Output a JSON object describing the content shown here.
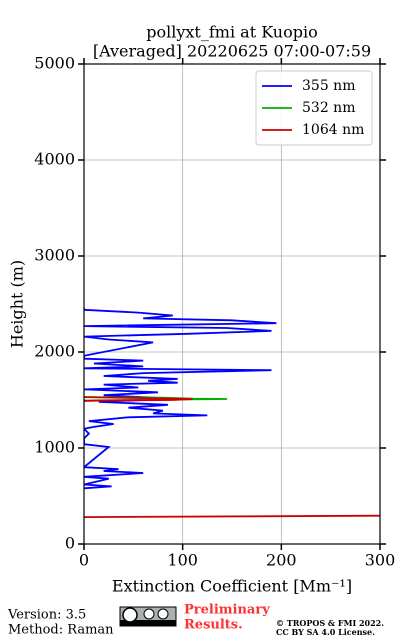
{
  "chart_data": {
    "type": "line",
    "title": "pollyxt_fmi at Kuopio",
    "subtitle": "[Averaged] 20220625 07:00-07:59",
    "xlabel": "Extinction Coefficient [Mm⁻¹]",
    "ylabel": "Height (m)",
    "xlim": [
      0,
      300
    ],
    "xticks": [
      0,
      100,
      200,
      300
    ],
    "ylim": [
      0,
      5000
    ],
    "yticks": [
      0,
      1000,
      2000,
      3000,
      4000,
      5000
    ],
    "grid": true,
    "legend": "upper right",
    "series": [
      {
        "name": "355 nm",
        "color": "#0000ff",
        "heights": [
          580,
          600,
          620,
          680,
          700,
          740,
          760,
          780,
          800,
          1010,
          1040,
          1100,
          1150,
          1200,
          1220,
          1250,
          1280,
          1320,
          1340,
          1360,
          1390,
          1420,
          1450,
          1480,
          1500,
          1520,
          1550,
          1580,
          1610,
          1630,
          1660,
          1680,
          1700,
          1720,
          1750,
          1780,
          1810,
          1830,
          1850,
          1880,
          1910,
          1930,
          1960,
          2100,
          2130,
          2160,
          2190,
          2220,
          2250,
          2270,
          2300,
          2330,
          2350,
          2380,
          2410,
          2440,
          2460
        ],
        "values": [
          0,
          28,
          0,
          25,
          0,
          60,
          20,
          35,
          0,
          25,
          0,
          0,
          5,
          0,
          10,
          30,
          5,
          45,
          125,
          70,
          80,
          45,
          85,
          15,
          60,
          80,
          20,
          75,
          0,
          55,
          20,
          95,
          65,
          95,
          20,
          60,
          190,
          0,
          60,
          10,
          60,
          0,
          0,
          70,
          25,
          0,
          105,
          190,
          145,
          0,
          195,
          150,
          60,
          90,
          55,
          0,
          0
        ]
      },
      {
        "name": "532 nm",
        "color": "#00b000",
        "heights": [
          1495,
          1505,
          1510,
          1515,
          1525,
          1530
        ],
        "values": [
          0,
          100,
          145,
          110,
          80,
          0
        ]
      },
      {
        "name": "1064 nm",
        "color": "#cc0000",
        "heights": [
          280,
          295,
          null,
          1490,
          1495,
          1500,
          1510,
          1520,
          1530
        ],
        "values": [
          0,
          300,
          null,
          0,
          20,
          90,
          110,
          60,
          0
        ]
      }
    ]
  },
  "footer": {
    "version": "Version: 3.5",
    "method": "Method: Raman",
    "preliminary_1": "Preliminary",
    "preliminary_2": "Results.",
    "copyright": "© TROPOS & FMI 2022.",
    "license": "CC BY SA 4.0 License."
  }
}
